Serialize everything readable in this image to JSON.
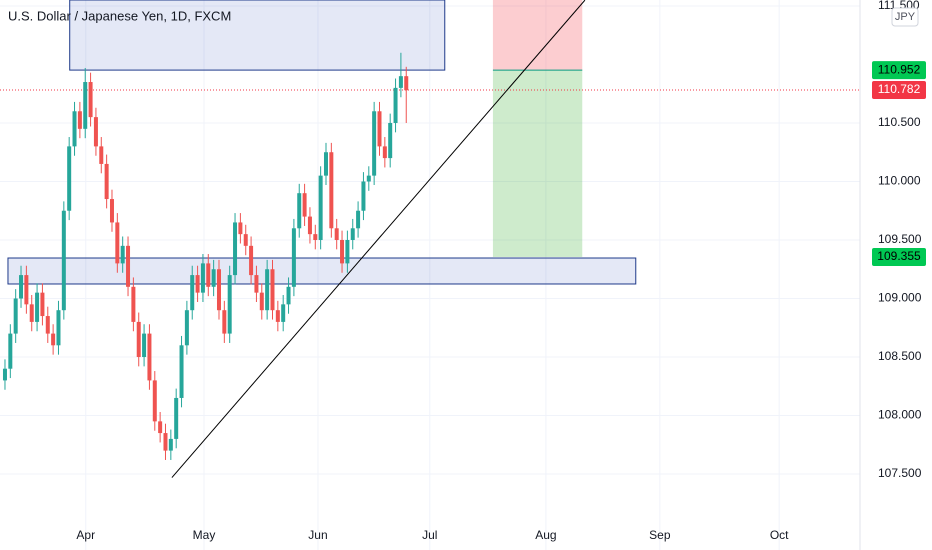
{
  "chart_data": {
    "type": "candlestick",
    "title": "U.S. Dollar / Japanese Yen, 1D, FXCM",
    "currency": "JPY",
    "up_color": "#26a69a",
    "down_color": "#ef5350",
    "grid": true,
    "xlim": [
      -0.93,
      159.81
    ],
    "ylim": [
      107.107,
      111.551
    ],
    "xticks": [
      {
        "value": 15.1,
        "label": "Apr"
      },
      {
        "value": 37.2,
        "label": "May"
      },
      {
        "value": 58.5,
        "label": "Jun"
      },
      {
        "value": 79.4,
        "label": "Jul"
      },
      {
        "value": 101.1,
        "label": "Aug"
      },
      {
        "value": 122.4,
        "label": "Sep"
      },
      {
        "value": 144.7,
        "label": "Oct"
      }
    ],
    "yticks": [
      {
        "value": 107.5,
        "label": "107.500"
      },
      {
        "value": 108.0,
        "label": "108.000"
      },
      {
        "value": 108.5,
        "label": "108.500"
      },
      {
        "value": 109.0,
        "label": "109.000"
      },
      {
        "value": 109.5,
        "label": "109.500"
      },
      {
        "value": 110.0,
        "label": "110.000"
      },
      {
        "value": 110.5,
        "label": "110.500"
      },
      {
        "value": 111.5,
        "label": "111.500"
      }
    ],
    "open": [
      108.3,
      108.4,
      108.7,
      109.0,
      109.2,
      108.95,
      108.8,
      109.05,
      108.85,
      108.7,
      108.6,
      108.9,
      109.75,
      110.3,
      110.6,
      110.45,
      110.85,
      110.55,
      110.3,
      110.15,
      109.85,
      109.65,
      109.3,
      109.45,
      109.1,
      108.8,
      108.5,
      108.7,
      108.3,
      107.95,
      107.85,
      107.7,
      107.8,
      108.15,
      108.6,
      108.9,
      109.2,
      109.05,
      109.3,
      109.1,
      109.25,
      108.9,
      108.7,
      109.2,
      109.65,
      109.55,
      109.45,
      109.2,
      109.05,
      108.9,
      109.25,
      108.9,
      108.8,
      108.95,
      109.1,
      109.6,
      109.9,
      109.7,
      109.55,
      109.5,
      110.05,
      110.25,
      109.6,
      109.5,
      109.3,
      109.5,
      109.6,
      109.75,
      110.0,
      110.05,
      110.6,
      110.3,
      110.2,
      110.5,
      110.8,
      110.9
    ],
    "high": [
      108.48,
      108.78,
      109.08,
      109.28,
      109.28,
      109.03,
      109.13,
      109.13,
      108.93,
      108.78,
      108.98,
      109.83,
      110.38,
      110.68,
      110.68,
      110.97,
      110.93,
      110.63,
      110.38,
      110.23,
      109.93,
      109.73,
      109.53,
      109.53,
      109.18,
      108.88,
      108.78,
      108.78,
      108.38,
      108.03,
      107.93,
      107.88,
      108.23,
      108.68,
      108.98,
      109.28,
      109.28,
      109.38,
      109.38,
      109.33,
      109.33,
      108.98,
      109.28,
      109.73,
      109.73,
      109.63,
      109.53,
      109.28,
      109.13,
      109.33,
      109.33,
      108.98,
      109.03,
      109.18,
      109.68,
      109.98,
      109.98,
      109.78,
      109.63,
      110.13,
      110.33,
      110.33,
      109.68,
      109.58,
      109.58,
      109.68,
      109.83,
      110.08,
      110.13,
      110.68,
      110.68,
      110.38,
      110.58,
      110.88,
      111.1,
      110.98
    ],
    "low": [
      108.22,
      108.32,
      108.62,
      108.92,
      108.87,
      108.72,
      108.72,
      108.77,
      108.62,
      108.52,
      108.52,
      108.82,
      109.67,
      110.22,
      110.37,
      110.37,
      110.47,
      110.22,
      110.07,
      109.77,
      109.57,
      109.22,
      109.22,
      109.02,
      108.72,
      108.42,
      108.42,
      108.22,
      107.87,
      107.77,
      107.62,
      107.62,
      107.72,
      108.07,
      108.52,
      108.82,
      108.97,
      108.97,
      109.02,
      109.02,
      108.82,
      108.62,
      108.62,
      109.12,
      109.47,
      109.37,
      109.12,
      108.97,
      108.82,
      108.82,
      108.82,
      108.72,
      108.72,
      108.87,
      109.02,
      109.52,
      109.62,
      109.47,
      109.42,
      109.42,
      109.97,
      109.52,
      109.42,
      109.22,
      109.22,
      109.42,
      109.52,
      109.67,
      109.92,
      109.97,
      110.22,
      110.12,
      110.12,
      110.42,
      110.72,
      110.5
    ],
    "close": [
      108.4,
      108.7,
      109.0,
      109.2,
      108.95,
      108.8,
      109.05,
      108.85,
      108.7,
      108.6,
      108.9,
      109.75,
      110.3,
      110.6,
      110.45,
      110.85,
      110.55,
      110.3,
      110.15,
      109.85,
      109.65,
      109.3,
      109.45,
      109.1,
      108.8,
      108.5,
      108.7,
      108.3,
      107.95,
      107.85,
      107.7,
      107.8,
      108.15,
      108.6,
      108.9,
      109.2,
      109.05,
      109.3,
      109.1,
      109.25,
      108.9,
      108.7,
      109.2,
      109.65,
      109.55,
      109.45,
      109.2,
      109.05,
      108.9,
      109.25,
      108.9,
      108.8,
      108.95,
      109.1,
      109.6,
      109.9,
      109.7,
      109.55,
      109.5,
      110.05,
      110.25,
      109.6,
      109.5,
      109.3,
      109.5,
      109.6,
      109.75,
      110.0,
      110.05,
      110.6,
      110.3,
      110.2,
      110.5,
      110.8,
      110.9,
      110.78
    ],
    "zones": [
      {
        "x": [
          12.1,
          82.2
        ],
        "low": 110.952,
        "high": 111.551
      },
      {
        "x": [
          0.56,
          117.9
        ],
        "low": 109.124,
        "high": 109.346
      }
    ],
    "trendline": {
      "x": [
        31.2,
        108.4
      ],
      "y": [
        107.47,
        111.55
      ]
    },
    "position": {
      "x": [
        91.2,
        107.9
      ],
      "stop": 111.551,
      "entry": 110.952,
      "target": 109.355
    },
    "price_labels": [
      {
        "value": 110.952,
        "color": "#00c853"
      },
      {
        "value": 110.782,
        "color": "#f23645"
      },
      {
        "value": 109.355,
        "color": "#00c853"
      }
    ]
  }
}
